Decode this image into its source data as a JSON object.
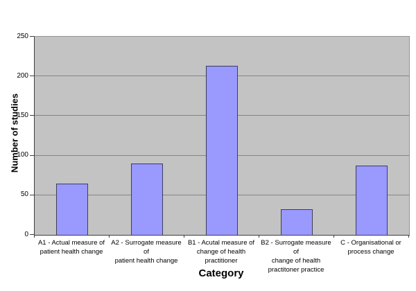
{
  "chart_data": {
    "type": "bar",
    "title": "",
    "xlabel": "Category",
    "ylabel": "Number of studies",
    "categories": [
      "A1 - Actual measure of patient health change",
      "A2 - Surrogate measure of patient health change",
      "B1 - Acutal measure of change of health practitioner",
      "B2 - Surrogate measure of change of health practitoner practice",
      "C - Organisational or process change"
    ],
    "category_label_lines": [
      [
        "A1 - Actual measure of",
        "patient health change"
      ],
      [
        "A2 - Surrogate measure of",
        "patient health change"
      ],
      [
        "B1 - Acutal measure of",
        "change of health",
        "practitioner"
      ],
      [
        "B2 - Surrogate measure of",
        "change of health",
        "practitoner practice"
      ],
      [
        "C - Organisational or",
        "process change"
      ]
    ],
    "values": [
      65,
      90,
      213,
      32,
      87
    ],
    "ylim": [
      0,
      250
    ],
    "yticks": [
      0,
      50,
      100,
      150,
      200,
      250
    ],
    "grid": true,
    "legend": "none",
    "colors": {
      "bar_fill": "#9999fe",
      "bar_border": "#3c3c55",
      "plot_background": "#c3c3c3",
      "gridline": "#848484",
      "axis_line": "#3d3d3d",
      "page_background": "#ffffff",
      "text": "#000000"
    }
  }
}
